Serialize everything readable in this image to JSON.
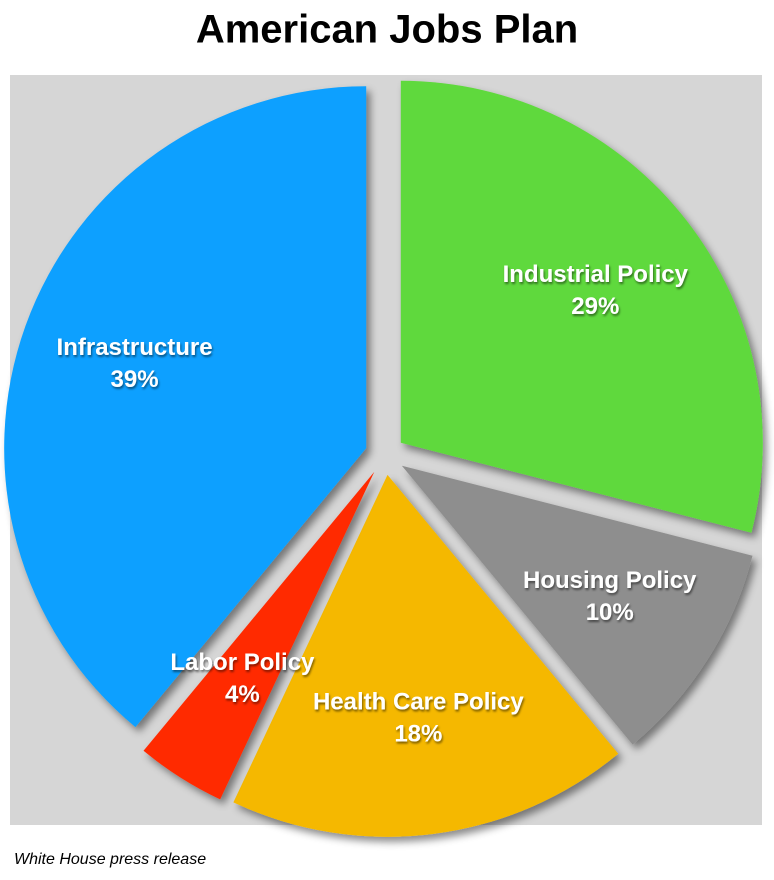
{
  "chart_data": {
    "type": "pie",
    "title": "American Jobs Plan",
    "categories": [
      "Industrial Policy",
      "Housing Policy",
      "Health Care Policy",
      "Labor Policy",
      "Infrastructure"
    ],
    "values": [
      29,
      10,
      18,
      4,
      39
    ],
    "value_labels": [
      "29%",
      "10%",
      "18%",
      "4%",
      "39%"
    ],
    "colors": [
      "#5fd93c",
      "#8e8e8e",
      "#f5b800",
      "#ff2a00",
      "#0aa0ff"
    ],
    "source": "White House press release"
  }
}
